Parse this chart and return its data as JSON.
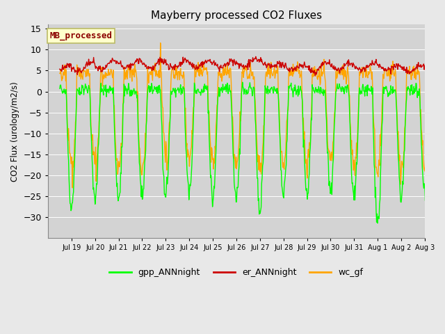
{
  "title": "Mayberry processed CO2 Fluxes",
  "ylabel": "CO2 Flux (urology/m2/s)",
  "ylim": [
    -35,
    16
  ],
  "yticks": [
    -30,
    -25,
    -20,
    -15,
    -10,
    -5,
    0,
    5,
    10,
    15
  ],
  "fig_bg_color": "#e8e8e8",
  "plot_bg_color": "#d3d3d3",
  "gpp_color": "#00ff00",
  "er_color": "#cc0000",
  "wc_color": "#ffa500",
  "legend_label": "MB_processed",
  "legend_text_color": "#8b0000",
  "legend_bg": "#ffffcc",
  "legend_border": "#bbbb66",
  "line_width": 1.0,
  "n_days": 16,
  "n_points_per_day": 48,
  "date_labels": [
    "Jul 19",
    "Jul 20",
    "Jul 21",
    "Jul 22",
    "Jul 23",
    "Jul 24",
    "Jul 25",
    "Jul 26",
    "Jul 27",
    "Jul 28",
    "Jul 29",
    "Jul 30",
    "Jul 31",
    "Aug 1",
    "Aug 2",
    "Aug 3"
  ]
}
